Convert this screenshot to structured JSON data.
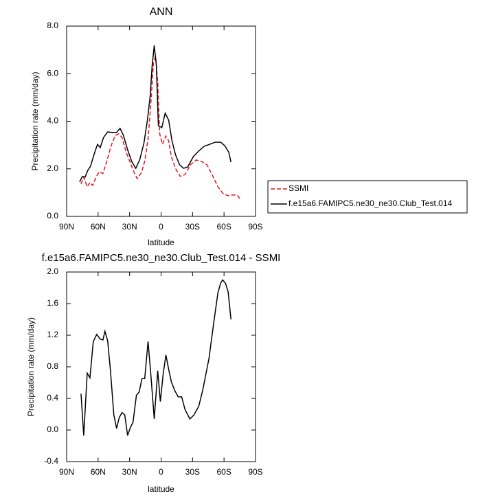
{
  "chart_data": [
    {
      "type": "line",
      "title": "ANN",
      "xlabel": "latitude",
      "ylabel": "Precipitation rate (mm/day)",
      "xlim": [
        90,
        -90
      ],
      "xticks": [
        {
          "value": 90,
          "label": "90N"
        },
        {
          "value": 60,
          "label": "60N"
        },
        {
          "value": 30,
          "label": "30N"
        },
        0,
        {
          "value": -30,
          "label": "30S"
        },
        {
          "value": -60,
          "label": "60S"
        },
        {
          "value": -90,
          "label": "90S"
        }
      ],
      "ylim": [
        0,
        8
      ],
      "yticks": [
        {
          "value": 0,
          "label": "0.0"
        },
        {
          "value": 2,
          "label": "2.0"
        },
        {
          "value": 4,
          "label": "4.0"
        },
        {
          "value": 6,
          "label": "6.0"
        },
        {
          "value": 8,
          "label": "8.0"
        }
      ],
      "series": [
        {
          "name": "SSMI",
          "color": "#e8141c",
          "dash": true,
          "x": [
            76.3,
            73.7,
            70.4,
            67.8,
            65.2,
            62,
            58.7,
            55.4,
            51.5,
            47.6,
            43.7,
            40.4,
            37.2,
            33.2,
            29.3,
            25.4,
            22.8,
            18.9,
            15.6,
            12.4,
            9.8,
            7.2,
            5.2,
            3.2,
            1.3,
            -1.3,
            -4.6,
            -7.2,
            -9.8,
            -13.7,
            -18.3,
            -22.8,
            -28,
            -33.3,
            -38.5,
            -43.7,
            -48.9,
            -54.2,
            -58.7,
            -63.3,
            -68.5,
            -72.4,
            -75
          ],
          "values": [
            1.36,
            1.65,
            1.24,
            1.42,
            1.3,
            1.65,
            1.88,
            1.8,
            2.35,
            2.97,
            3.4,
            3.47,
            3.32,
            2.69,
            2.25,
            1.82,
            1.59,
            1.82,
            2.31,
            3.26,
            4.7,
            6.5,
            6.73,
            5.63,
            3.47,
            3.03,
            3.38,
            3.18,
            2.51,
            2.02,
            1.68,
            1.76,
            2.17,
            2.37,
            2.31,
            2.17,
            1.73,
            1.24,
            0.98,
            0.87,
            0.9,
            0.9,
            0.75
          ]
        },
        {
          "name": "f.e15a6.FAMIPC5.ne30_ne30.Club_Test.014",
          "color": "#000000",
          "dash": false,
          "x": [
            77.6,
            75,
            72.4,
            69.8,
            67.2,
            63.9,
            60.6,
            58,
            54.8,
            50.9,
            46.9,
            42.4,
            39.1,
            35.9,
            31.9,
            28,
            24.1,
            20.2,
            16.3,
            13,
            10.4,
            8.5,
            6.5,
            4.5,
            2.6,
            -0.7,
            -3.9,
            -7.2,
            -10.4,
            -13.7,
            -17.6,
            -21.5,
            -25.4,
            -30.7,
            -35.9,
            -41.1,
            -46.3,
            -51.6,
            -56.8,
            -60.7,
            -64.6,
            -66.6
          ],
          "values": [
            1.45,
            1.68,
            1.65,
            1.94,
            2.11,
            2.6,
            3.03,
            2.89,
            3.32,
            3.55,
            3.53,
            3.53,
            3.7,
            3.41,
            2.8,
            2.31,
            2.02,
            2.4,
            3.09,
            4.05,
            5.06,
            6.35,
            7.19,
            6.35,
            3.82,
            3.73,
            4.34,
            4.05,
            3.18,
            2.6,
            2.17,
            2.02,
            2.08,
            2.51,
            2.75,
            2.95,
            3.03,
            3.12,
            3.12,
            2.97,
            2.69,
            2.28
          ]
        }
      ]
    },
    {
      "type": "line",
      "title": "f.e15a6.FAMIPC5.ne30_ne30.Club_Test.014 - SSMI",
      "xlabel": "latitude",
      "ylabel": "Precipitation rate (mm/day)",
      "xlim": [
        90,
        -90
      ],
      "xticks": [
        {
          "value": 90,
          "label": "90N"
        },
        {
          "value": 60,
          "label": "60N"
        },
        {
          "value": 30,
          "label": "30N"
        },
        0,
        {
          "value": -30,
          "label": "30S"
        },
        {
          "value": -60,
          "label": "60S"
        },
        {
          "value": -90,
          "label": "90S"
        }
      ],
      "ylim": [
        -0.4,
        2
      ],
      "yticks": [
        -0.4,
        {
          "value": 0,
          "label": "0.0"
        },
        0.4,
        0.8,
        1.2,
        1.6,
        {
          "value": 2,
          "label": "2.0"
        }
      ],
      "series": [
        {
          "color": "#000000",
          "dash": false,
          "x": [
            76.3,
            73.7,
            70.4,
            67.8,
            64.6,
            61.3,
            58,
            55.4,
            53.5,
            50.9,
            48.3,
            45,
            42.4,
            39.8,
            37.2,
            34.6,
            31.9,
            29.3,
            26.7,
            23.5,
            20.9,
            18.2,
            15.6,
            12.4,
            9.8,
            6.5,
            3.2,
            0.7,
            -2,
            -4.6,
            -7.2,
            -9.8,
            -13,
            -16.3,
            -19.6,
            -22.8,
            -27.4,
            -31.3,
            -35.9,
            -39.8,
            -45.7,
            -50.2,
            -54.2,
            -56.8,
            -58.7,
            -61.3,
            -63.9,
            -66.6
          ],
          "values": [
            0.46,
            -0.07,
            0.72,
            0.66,
            1.12,
            1.21,
            1.15,
            1.14,
            1.25,
            1.13,
            0.76,
            0.19,
            0.02,
            0.16,
            0.22,
            0.19,
            -0.07,
            0.03,
            0.1,
            0.44,
            0.48,
            0.65,
            0.65,
            1.12,
            0.71,
            0.14,
            0.75,
            0.36,
            0.71,
            0.95,
            0.77,
            0.61,
            0.5,
            0.42,
            0.42,
            0.26,
            0.14,
            0.19,
            0.3,
            0.51,
            0.91,
            1.36,
            1.74,
            1.86,
            1.9,
            1.86,
            1.75,
            1.4
          ]
        }
      ]
    }
  ]
}
